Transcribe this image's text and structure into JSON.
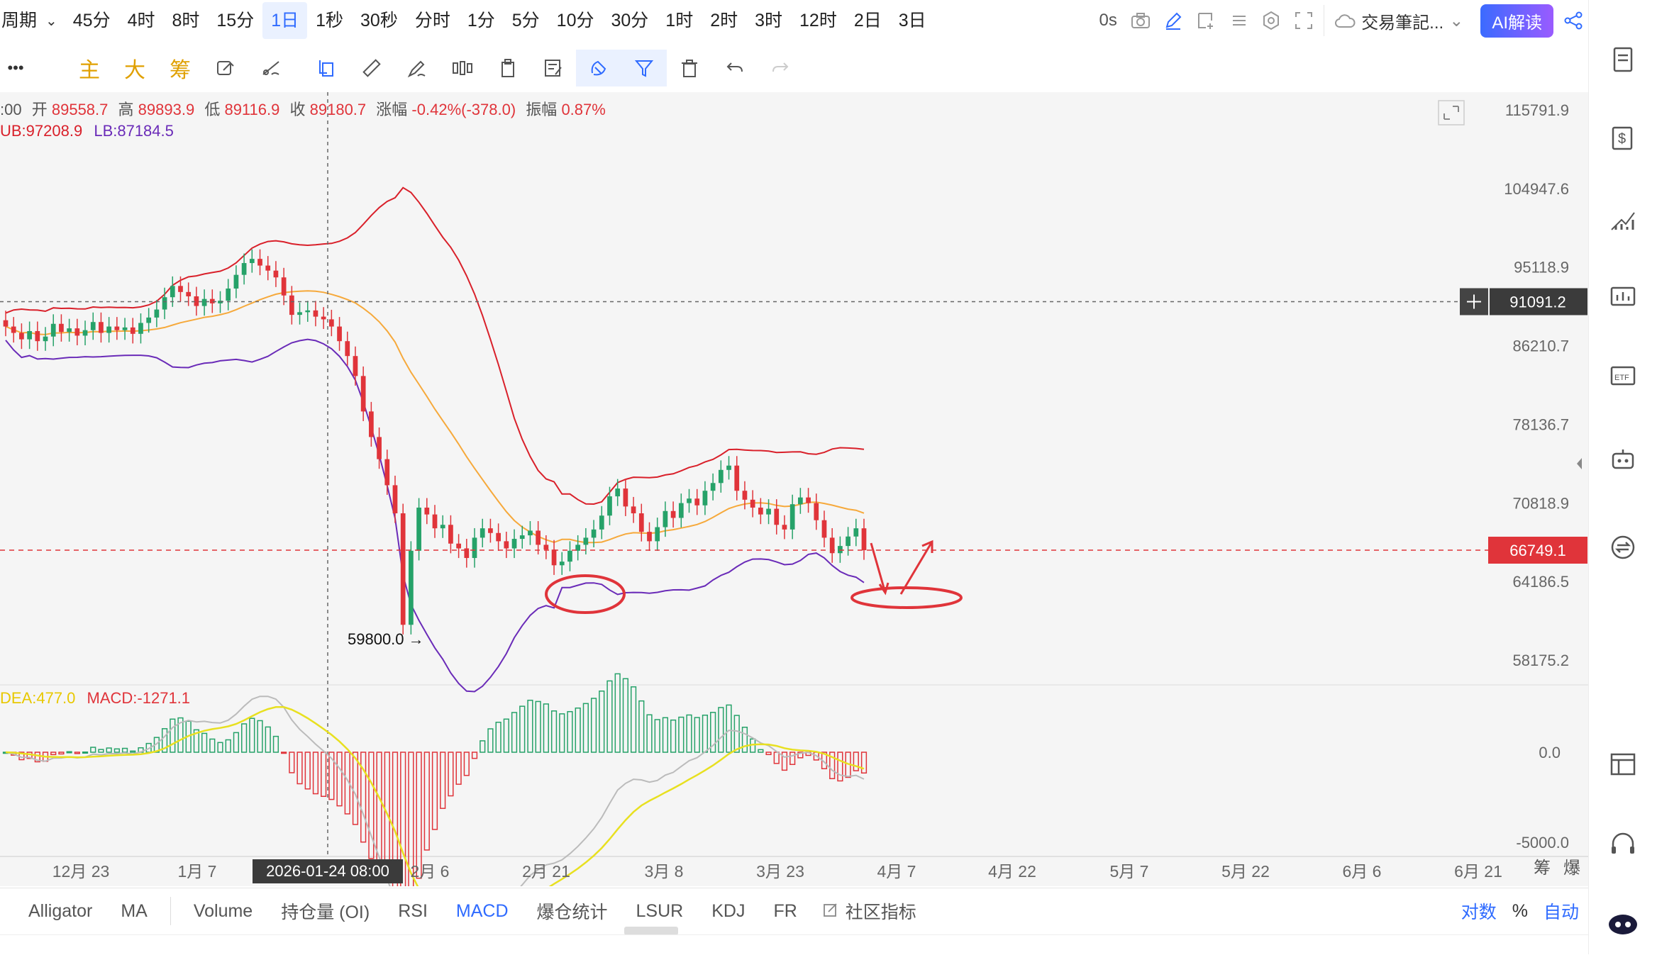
{
  "timeframes": [
    "周期",
    "45分",
    "4时",
    "8时",
    "15分",
    "1日",
    "1秒",
    "30秒",
    "分时",
    "1分",
    "5分",
    "10分",
    "30分",
    "1时",
    "2时",
    "3时",
    "12时",
    "2日",
    "3日"
  ],
  "active_timeframe": "1日",
  "right_toolbar": {
    "countdown": "0s",
    "note_label": "交易筆記...",
    "ai_label": "AI解读"
  },
  "toolbar2": {
    "more": "•••",
    "main": "主",
    "big": "大",
    "chips": "筹"
  },
  "info": {
    "time_prefix": ":00",
    "open_label": "开",
    "open": "89558.7",
    "high_label": "高",
    "high": "89893.9",
    "low_label": "低",
    "low": "89116.9",
    "close_label": "收",
    "close": "89180.7",
    "change_label": "涨幅",
    "change": "-0.42%(-378.0)",
    "amp_label": "振幅",
    "amp": "0.87%",
    "ub": "UB:97208.9",
    "lb": "LB:87184.5",
    "dea": "DEA:477.0",
    "macd": "MACD:-1271.1"
  },
  "chart_data": {
    "type": "candlestick",
    "price_axis": [
      "115791.9",
      "104947.6",
      "95118.9",
      "86210.7",
      "78136.7",
      "70818.9",
      "64186.5",
      "58175.2"
    ],
    "crosshair_price": "91091.2",
    "current_price": "66749.1",
    "min_marker": "59800.0 →",
    "macd_axis": [
      "0.0",
      "-5000.0"
    ],
    "x_labels": [
      "12月 23",
      "1月 7",
      "2月 6",
      "2月 21",
      "3月 8",
      "3月 23",
      "4月 7",
      "4月 22",
      "5月 7",
      "5月 22",
      "6月 6",
      "6月 21"
    ],
    "crosshair_date": "2026-01-24 08:00",
    "axis_buttons": [
      "筹",
      "爆"
    ],
    "closes": [
      88300,
      87600,
      86900,
      87800,
      86700,
      87200,
      88600,
      87700,
      88100,
      87300,
      87900,
      88800,
      87600,
      88300,
      87900,
      88200,
      87500,
      88700,
      89300,
      90200,
      91600,
      92900,
      92200,
      91700,
      90600,
      91400,
      90900,
      91200,
      92600,
      94200,
      95600,
      96100,
      95300,
      94700,
      93900,
      91800,
      89600,
      89900,
      90100,
      89400,
      89100,
      88300,
      86700,
      85100,
      83000,
      79400,
      76900,
      74800,
      72400,
      69900,
      60800,
      66700,
      70400,
      69800,
      68600,
      68900,
      67300,
      66900,
      66100,
      67800,
      68600,
      68200,
      67500,
      66900,
      67700,
      68000,
      68400,
      67200,
      66800,
      65500,
      65800,
      66700,
      67200,
      67800,
      68500,
      69700,
      71400,
      72100,
      70500,
      69900,
      68300,
      67500,
      68700,
      70100,
      69500,
      70800,
      71200,
      70600,
      71900,
      72600,
      73800,
      74200,
      71900,
      71100,
      70400,
      69800,
      70300,
      68900,
      68500,
      70700,
      71300,
      70800,
      69300,
      67800,
      66500,
      67100,
      67900,
      68600,
      66749
    ]
  },
  "tabs": [
    "Alligator",
    "MA",
    "Volume",
    "持仓量 (OI)",
    "RSI",
    "MACD",
    "爆仓统计",
    "LSUR",
    "KDJ",
    "FR",
    "社区指标"
  ],
  "active_tab": "MACD",
  "tabs_right": [
    "对数",
    "%",
    "自动"
  ],
  "colors": {
    "up": "#26a269",
    "down": "#e0343a",
    "ub_line": "#d9202a",
    "mid_line": "#f6a93b",
    "lb_line": "#6a2bb8",
    "dea_line": "#e8e020",
    "diff_line": "#bbbbbb",
    "accent": "#2f6bff"
  }
}
